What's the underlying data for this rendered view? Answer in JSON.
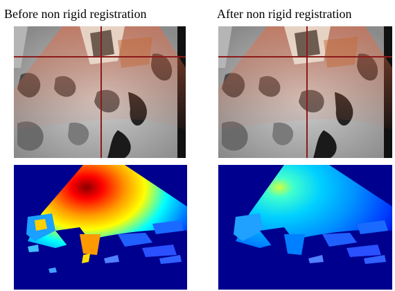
{
  "captions": {
    "before": "Before non rigid registration",
    "after": "After non rigid registration"
  },
  "colors": {
    "crosshair": "#8a1a1a",
    "overlay": "#e0603a",
    "heatmap_background": "#00008f",
    "heatmap_low": "#0000ff",
    "heatmap_mid": "#00ffff",
    "heatmap_high": "#ffff00",
    "heatmap_peak": "#ff0000"
  },
  "panels": {
    "mri_before": {
      "kind": "MRI slice with ultrasound overlay and crosshair"
    },
    "mri_after": {
      "kind": "MRI slice with ultrasound overlay and crosshair"
    },
    "heat_before": {
      "kind": "jet colormap deformation magnitude",
      "peak_level": "high"
    },
    "heat_after": {
      "kind": "jet colormap deformation magnitude",
      "peak_level": "low"
    }
  }
}
